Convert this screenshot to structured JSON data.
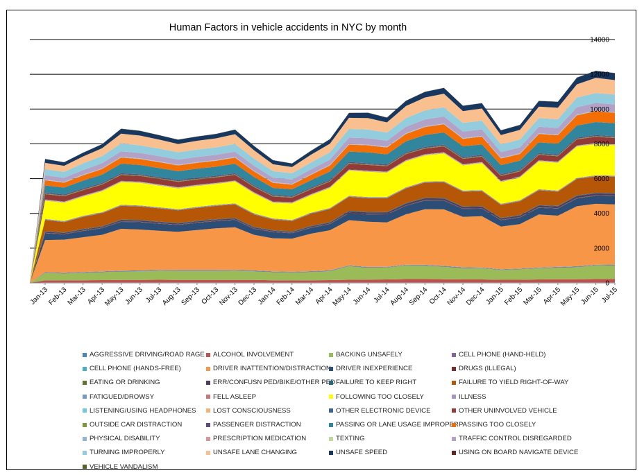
{
  "chart_data": {
    "type": "area",
    "stacked": true,
    "title": "Human Factors in vehicle accidents in NYC by month",
    "categories": [
      "Jan-13",
      "Feb-13",
      "Mar-13",
      "Apr-13",
      "May-13",
      "Jun-13",
      "Jul-13",
      "Aug-13",
      "Sep-13",
      "Oct-13",
      "Nov-13",
      "Dec-13",
      "Jan-14",
      "Feb-14",
      "Mar-14",
      "Apr-14",
      "May-14",
      "Jun-14",
      "Jul-14",
      "Aug-14",
      "Sep-14",
      "Oct-14",
      "Nov-14",
      "Dec-14",
      "Jan-15",
      "Feb-15",
      "Mar-15",
      "Apr-15",
      "May-15",
      "Jun-15",
      "Jul-15"
    ],
    "ylim": [
      0,
      14000
    ],
    "yticks": [
      "0",
      "2000",
      "4000",
      "6000",
      "8000",
      "10000",
      "12000",
      "14000"
    ],
    "grid": true,
    "legend_position": "bottom",
    "series": [
      {
        "name": "AGGRESSIVE DRIVING/ROAD RAGE",
        "color": "#4f81bd",
        "values": [
          30,
          30,
          30,
          30,
          30,
          30,
          30,
          30,
          30,
          30,
          30,
          30,
          30,
          30,
          30,
          30,
          30,
          30,
          30,
          30,
          30,
          30,
          30,
          30,
          30,
          30,
          30,
          30,
          30,
          30,
          30
        ]
      },
      {
        "name": "ALCOHOL INVOLVEMENT",
        "color": "#c0504d",
        "values": [
          120,
          110,
          120,
          130,
          140,
          140,
          150,
          140,
          140,
          140,
          140,
          140,
          120,
          110,
          120,
          130,
          150,
          160,
          170,
          190,
          190,
          180,
          170,
          170,
          150,
          150,
          170,
          180,
          180,
          190,
          200
        ]
      },
      {
        "name": "BACKING UNSAFELY",
        "color": "#9bbb59",
        "values": [
          420,
          400,
          430,
          460,
          490,
          500,
          520,
          520,
          520,
          520,
          530,
          500,
          470,
          460,
          480,
          520,
          780,
          680,
          680,
          780,
          770,
          720,
          650,
          640,
          560,
          600,
          640,
          660,
          700,
          780,
          780
        ]
      },
      {
        "name": "CELL PHONE (HAND-HELD)",
        "color": "#8064a2",
        "values": [
          30,
          30,
          30,
          30,
          30,
          30,
          30,
          30,
          30,
          30,
          30,
          30,
          30,
          30,
          30,
          30,
          30,
          30,
          30,
          30,
          30,
          30,
          30,
          30,
          30,
          30,
          30,
          30,
          30,
          30,
          30
        ]
      },
      {
        "name": "CELL PHONE (HANDS-FREE)",
        "color": "#4bacc6",
        "values": [
          20,
          20,
          20,
          20,
          20,
          20,
          20,
          20,
          20,
          20,
          20,
          20,
          20,
          20,
          20,
          20,
          20,
          20,
          20,
          20,
          20,
          20,
          20,
          20,
          20,
          20,
          20,
          20,
          20,
          20,
          20
        ]
      },
      {
        "name": "DRIVER INATTENTION/DISTRACTION",
        "color": "#f79646",
        "values": [
          1850,
          1900,
          2000,
          2100,
          2400,
          2350,
          2250,
          2200,
          2300,
          2400,
          2450,
          2050,
          1900,
          1900,
          2150,
          2300,
          2600,
          2600,
          2550,
          2900,
          3200,
          3250,
          2900,
          2950,
          2450,
          2550,
          3050,
          2950,
          3450,
          3500,
          3450
        ]
      },
      {
        "name": "DRIVER INEXPERIENCE",
        "color": "#2c4d75",
        "values": [
          380,
          300,
          350,
          370,
          400,
          420,
          400,
          390,
          410,
          410,
          420,
          330,
          350,
          300,
          330,
          350,
          400,
          420,
          450,
          480,
          500,
          500,
          450,
          430,
          360,
          380,
          380,
          400,
          450,
          460,
          480
        ]
      },
      {
        "name": "DRUGS (ILLEGAL)",
        "color": "#772c2a",
        "values": [
          20,
          20,
          20,
          20,
          20,
          20,
          20,
          20,
          20,
          20,
          20,
          20,
          20,
          20,
          20,
          20,
          20,
          20,
          20,
          20,
          20,
          20,
          20,
          20,
          20,
          20,
          20,
          20,
          20,
          20,
          20
        ]
      },
      {
        "name": "EATING OR DRINKING",
        "color": "#5f7530",
        "values": [
          10,
          10,
          10,
          10,
          10,
          10,
          10,
          10,
          10,
          10,
          10,
          10,
          10,
          10,
          10,
          10,
          10,
          10,
          10,
          10,
          10,
          10,
          10,
          10,
          10,
          10,
          10,
          10,
          10,
          10,
          10
        ]
      },
      {
        "name": "ERR/CONFUSN PED/BIKE/OTHER PED",
        "color": "#4d3b62",
        "values": [
          60,
          50,
          60,
          60,
          70,
          70,
          70,
          60,
          60,
          60,
          60,
          60,
          50,
          50,
          60,
          60,
          80,
          90,
          90,
          100,
          100,
          100,
          90,
          90,
          80,
          80,
          100,
          100,
          110,
          110,
          110
        ]
      },
      {
        "name": "FAILURE TO KEEP RIGHT",
        "color": "#276a7c",
        "values": [
          30,
          30,
          30,
          30,
          30,
          30,
          30,
          30,
          30,
          30,
          30,
          30,
          30,
          30,
          30,
          30,
          30,
          30,
          30,
          30,
          30,
          30,
          30,
          30,
          30,
          30,
          30,
          30,
          30,
          30,
          30
        ]
      },
      {
        "name": "FAILURE TO YIELD RIGHT-OF-WAY",
        "color": "#b65708",
        "values": [
          650,
          600,
          700,
          750,
          800,
          780,
          760,
          730,
          750,
          760,
          780,
          720,
          620,
          600,
          700,
          750,
          800,
          790,
          800,
          850,
          870,
          900,
          850,
          860,
          750,
          800,
          850,
          820,
          950,
          950,
          950
        ]
      },
      {
        "name": "FATIGUED/DROWSY",
        "color": "#729aca",
        "values": [
          40,
          40,
          40,
          40,
          40,
          40,
          40,
          40,
          40,
          40,
          40,
          40,
          40,
          40,
          40,
          40,
          40,
          40,
          40,
          40,
          40,
          40,
          40,
          40,
          40,
          40,
          40,
          40,
          40,
          40,
          40
        ]
      },
      {
        "name": "FELL ASLEEP",
        "color": "#cd7371",
        "values": [
          20,
          20,
          20,
          20,
          20,
          20,
          20,
          20,
          20,
          20,
          20,
          20,
          20,
          20,
          20,
          20,
          20,
          20,
          20,
          20,
          20,
          20,
          20,
          20,
          20,
          20,
          20,
          20,
          20,
          20,
          20
        ]
      },
      {
        "name": "FOLLOWING TOO CLOSELY",
        "color": "#ffff00",
        "values": [
          1050,
          1050,
          1100,
          1200,
          1300,
          1300,
          1250,
          1200,
          1200,
          1200,
          1250,
          1150,
          900,
          950,
          1000,
          1150,
          1450,
          1450,
          1400,
          1500,
          1500,
          1600,
          1450,
          1550,
          1250,
          1300,
          1600,
          1600,
          1800,
          1800,
          1750
        ]
      },
      {
        "name": "ILLNESS",
        "color": "#a992c4",
        "values": [
          20,
          20,
          20,
          20,
          20,
          20,
          20,
          20,
          20,
          20,
          20,
          20,
          20,
          20,
          20,
          20,
          20,
          20,
          20,
          20,
          20,
          20,
          20,
          20,
          20,
          20,
          20,
          20,
          20,
          20,
          20
        ]
      },
      {
        "name": "LISTENING/USING HEADPHONES",
        "color": "#6ec8de",
        "values": [
          5,
          5,
          5,
          5,
          5,
          5,
          5,
          5,
          5,
          5,
          5,
          5,
          5,
          5,
          5,
          5,
          5,
          5,
          5,
          5,
          5,
          5,
          5,
          5,
          5,
          5,
          5,
          5,
          5,
          5,
          5
        ]
      },
      {
        "name": "LOST CONSCIOUSNESS",
        "color": "#f9b074",
        "values": [
          30,
          30,
          30,
          30,
          30,
          30,
          30,
          30,
          30,
          30,
          30,
          30,
          30,
          30,
          30,
          30,
          30,
          30,
          30,
          30,
          30,
          30,
          30,
          30,
          30,
          30,
          30,
          30,
          30,
          30,
          30
        ]
      },
      {
        "name": "OTHER ELECTRONIC DEVICE",
        "color": "#3c6591",
        "values": [
          20,
          20,
          20,
          20,
          20,
          20,
          20,
          20,
          20,
          20,
          20,
          20,
          20,
          20,
          20,
          20,
          20,
          20,
          20,
          20,
          20,
          20,
          20,
          20,
          20,
          20,
          20,
          20,
          20,
          20,
          20
        ]
      },
      {
        "name": "OTHER UNINVOLVED VEHICLE",
        "color": "#933a38",
        "values": [
          300,
          300,
          300,
          310,
          330,
          320,
          310,
          300,
          300,
          300,
          310,
          290,
          280,
          260,
          270,
          300,
          320,
          320,
          300,
          330,
          320,
          330,
          300,
          300,
          280,
          280,
          300,
          300,
          340,
          340,
          340
        ]
      },
      {
        "name": "OUTSIDE CAR DISTRACTION",
        "color": "#7a9a3b",
        "values": [
          40,
          40,
          40,
          40,
          40,
          40,
          40,
          40,
          40,
          40,
          40,
          40,
          40,
          40,
          40,
          40,
          40,
          40,
          40,
          40,
          40,
          40,
          40,
          40,
          40,
          40,
          40,
          40,
          40,
          40,
          40
        ]
      },
      {
        "name": "PASSENGER DISTRACTION",
        "color": "#5e4b80",
        "values": [
          60,
          60,
          60,
          60,
          60,
          60,
          60,
          60,
          60,
          60,
          60,
          60,
          60,
          60,
          60,
          60,
          60,
          60,
          60,
          60,
          60,
          60,
          60,
          60,
          60,
          60,
          60,
          60,
          60,
          60,
          60
        ]
      },
      {
        "name": "PASSING OR LANE USAGE IMPROPER",
        "color": "#31859c",
        "values": [
          400,
          400,
          450,
          470,
          550,
          530,
          520,
          510,
          520,
          520,
          540,
          480,
          400,
          380,
          420,
          480,
          600,
          620,
          580,
          640,
          680,
          700,
          620,
          600,
          520,
          520,
          620,
          620,
          700,
          750,
          750
        ]
      },
      {
        "name": "PASSING TOO CLOSELY",
        "color": "#f36f06",
        "values": [
          300,
          280,
          300,
          330,
          360,
          340,
          340,
          330,
          330,
          340,
          350,
          320,
          290,
          270,
          310,
          340,
          400,
          410,
          390,
          420,
          460,
          470,
          430,
          450,
          380,
          380,
          480,
          490,
          580,
          620,
          600
        ]
      },
      {
        "name": "PHYSICAL DISABILITY",
        "color": "#95b3d7",
        "values": [
          20,
          20,
          20,
          20,
          20,
          20,
          20,
          20,
          20,
          20,
          20,
          20,
          20,
          20,
          20,
          20,
          20,
          20,
          20,
          20,
          20,
          20,
          20,
          20,
          20,
          20,
          20,
          20,
          20,
          20,
          20
        ]
      },
      {
        "name": "PRESCRIPTION MEDICATION",
        "color": "#d99694",
        "values": [
          10,
          10,
          10,
          10,
          10,
          10,
          10,
          10,
          10,
          10,
          10,
          10,
          10,
          10,
          10,
          10,
          10,
          10,
          10,
          10,
          10,
          10,
          10,
          10,
          10,
          10,
          10,
          10,
          10,
          10,
          10
        ]
      },
      {
        "name": "TEXTING",
        "color": "#c3d69b",
        "values": [
          10,
          10,
          10,
          10,
          10,
          10,
          10,
          10,
          10,
          10,
          10,
          10,
          10,
          10,
          10,
          10,
          10,
          10,
          10,
          10,
          10,
          10,
          10,
          10,
          10,
          10,
          10,
          10,
          10,
          10,
          10
        ]
      },
      {
        "name": "TRAFFIC CONTROL DISREGARDED",
        "color": "#b3a2c7",
        "values": [
          250,
          240,
          270,
          290,
          320,
          310,
          310,
          300,
          300,
          300,
          310,
          290,
          260,
          250,
          280,
          300,
          360,
          370,
          350,
          380,
          400,
          410,
          380,
          380,
          330,
          340,
          380,
          380,
          430,
          440,
          440
        ]
      },
      {
        "name": "TURNING IMPROPERLY",
        "color": "#93cddd",
        "values": [
          350,
          340,
          380,
          410,
          450,
          440,
          430,
          420,
          430,
          430,
          440,
          410,
          370,
          360,
          390,
          420,
          500,
          500,
          470,
          500,
          520,
          530,
          500,
          500,
          440,
          450,
          500,
          500,
          560,
          560,
          570
        ]
      },
      {
        "name": "UNSAFE LANE CHANGING",
        "color": "#fabf8f",
        "values": [
          360,
          350,
          400,
          450,
          560,
          560,
          520,
          480,
          500,
          520,
          560,
          480,
          400,
          360,
          450,
          500,
          640,
          660,
          590,
          690,
          740,
          780,
          680,
          700,
          540,
          560,
          660,
          660,
          760,
          880,
          830
        ]
      },
      {
        "name": "UNSAFE SPEED",
        "color": "#17375e",
        "values": [
          220,
          200,
          210,
          230,
          280,
          270,
          250,
          240,
          240,
          250,
          260,
          240,
          230,
          200,
          220,
          250,
          280,
          300,
          270,
          300,
          320,
          330,
          300,
          300,
          270,
          280,
          320,
          340,
          380,
          400,
          400
        ]
      },
      {
        "name": "USING ON BOARD NAVIGATE DEVICE",
        "color": "#632523",
        "values": [
          5,
          5,
          5,
          5,
          5,
          5,
          5,
          5,
          5,
          5,
          5,
          5,
          5,
          5,
          5,
          5,
          5,
          5,
          5,
          5,
          5,
          5,
          5,
          5,
          5,
          5,
          5,
          5,
          5,
          5,
          5
        ]
      },
      {
        "name": "VEHICLE VANDALISM",
        "color": "#4f6228",
        "values": [
          5,
          5,
          5,
          5,
          5,
          5,
          5,
          5,
          5,
          5,
          5,
          5,
          5,
          5,
          5,
          5,
          5,
          5,
          5,
          5,
          5,
          5,
          5,
          5,
          5,
          5,
          5,
          5,
          5,
          5,
          5
        ]
      }
    ]
  }
}
